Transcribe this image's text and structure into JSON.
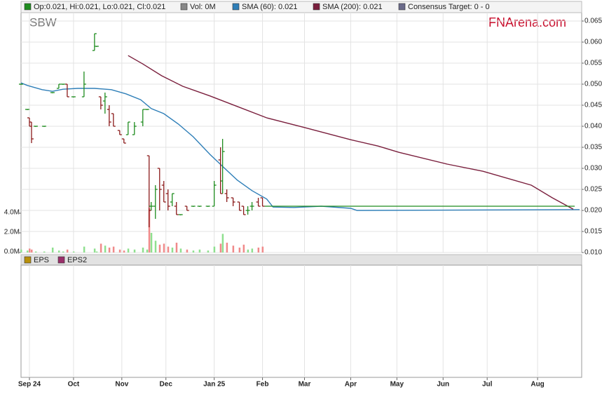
{
  "chart_data": [
    {
      "type": "ohlc",
      "ticker": "SBW",
      "brand": "FNArena.com",
      "legend": [
        {
          "label": "Op:0.021, Hi:0.021, Lo:0.021, Cl:0.021",
          "color": "#1e8c1e"
        },
        {
          "label": "Vol: 0M",
          "color": "#888888"
        },
        {
          "label": "SMA (60): 0.021",
          "color": "#2f7fb8"
        },
        {
          "label": "SMA (200): 0.021",
          "color": "#7a1f3d"
        },
        {
          "label": "Consensus Target: 0 - 0",
          "color": "#6a6a8a"
        }
      ],
      "up_color": "#1e8c1e",
      "down_color": "#8b1a1a",
      "volume_up_color": "#8fe08f",
      "volume_down_color": "#f08a8a",
      "x": [
        0,
        3,
        4,
        5,
        7,
        11,
        15,
        18,
        20,
        22,
        25,
        30,
        35,
        36,
        38,
        40,
        42,
        44,
        47,
        49,
        51,
        54,
        58,
        60,
        61,
        62,
        64,
        66,
        68,
        70,
        72,
        74,
        76,
        79,
        82,
        85,
        89,
        92,
        95,
        96,
        98,
        101,
        104,
        106,
        108,
        110,
        113,
        115
      ],
      "open": [
        0.05,
        0.044,
        0.042,
        0.041,
        0.04,
        0.04,
        0.048,
        0.049,
        0.05,
        0.05,
        0.047,
        0.047,
        0.058,
        0.059,
        0.047,
        0.046,
        0.044,
        0.043,
        0.039,
        0.037,
        0.038,
        0.038,
        0.041,
        0.044,
        0.033,
        0.021,
        0.021,
        0.03,
        0.026,
        0.024,
        0.022,
        0.021,
        0.019,
        0.021,
        0.021,
        0.021,
        0.021,
        0.021,
        0.032,
        0.027,
        0.024,
        0.023,
        0.022,
        0.021,
        0.02,
        0.021,
        0.022,
        0.023
      ],
      "high": [
        0.05,
        0.044,
        0.042,
        0.041,
        0.04,
        0.04,
        0.048,
        0.05,
        0.05,
        0.05,
        0.047,
        0.053,
        0.062,
        0.059,
        0.047,
        0.048,
        0.045,
        0.043,
        0.039,
        0.037,
        0.041,
        0.041,
        0.044,
        0.044,
        0.033,
        0.022,
        0.026,
        0.03,
        0.027,
        0.025,
        0.024,
        0.022,
        0.019,
        0.021,
        0.021,
        0.021,
        0.021,
        0.027,
        0.035,
        0.037,
        0.025,
        0.023,
        0.022,
        0.021,
        0.021,
        0.022,
        0.023,
        0.023
      ],
      "low": [
        0.05,
        0.044,
        0.04,
        0.036,
        0.04,
        0.04,
        0.048,
        0.049,
        0.05,
        0.047,
        0.047,
        0.047,
        0.058,
        0.059,
        0.044,
        0.043,
        0.04,
        0.04,
        0.038,
        0.036,
        0.038,
        0.038,
        0.04,
        0.044,
        0.016,
        0.02,
        0.018,
        0.02,
        0.022,
        0.02,
        0.021,
        0.019,
        0.019,
        0.02,
        0.021,
        0.021,
        0.021,
        0.021,
        0.024,
        0.024,
        0.022,
        0.021,
        0.02,
        0.019,
        0.019,
        0.02,
        0.021,
        0.021
      ],
      "close": [
        0.05,
        0.044,
        0.04,
        0.037,
        0.04,
        0.04,
        0.048,
        0.05,
        0.05,
        0.047,
        0.047,
        0.05,
        0.062,
        0.059,
        0.045,
        0.047,
        0.041,
        0.04,
        0.038,
        0.036,
        0.041,
        0.04,
        0.044,
        0.044,
        0.02,
        0.021,
        0.025,
        0.025,
        0.022,
        0.021,
        0.024,
        0.019,
        0.019,
        0.02,
        0.021,
        0.021,
        0.021,
        0.026,
        0.024,
        0.034,
        0.023,
        0.022,
        0.02,
        0.019,
        0.02,
        0.021,
        0.021,
        0.021
      ],
      "volume": [
        300000,
        200000,
        400000,
        300000,
        100000,
        100000,
        500000,
        200000,
        100000,
        300000,
        100000,
        600000,
        400000,
        100000,
        900000,
        700000,
        500000,
        600000,
        300000,
        200000,
        400000,
        300000,
        500000,
        300000,
        4500000,
        2000000,
        1200000,
        800000,
        900000,
        600000,
        500000,
        1000000,
        400000,
        300000,
        200000,
        300000,
        200000,
        600000,
        900000,
        1900000,
        1000000,
        700000,
        500000,
        800000,
        300000,
        400000,
        500000,
        600000
      ],
      "series": [
        {
          "color": "#2f7fb8",
          "x": [
            0,
            3,
            10,
            15,
            20,
            27,
            35,
            43,
            50,
            57,
            62,
            68,
            75,
            82,
            90,
            97,
            103,
            110,
            117,
            120,
            130,
            143,
            157,
            160,
            266
          ],
          "values": [
            0.0503,
            0.0497,
            0.0487,
            0.0483,
            0.0488,
            0.049,
            0.049,
            0.0487,
            0.0477,
            0.0463,
            0.0442,
            0.043,
            0.0405,
            0.0375,
            0.0333,
            0.03,
            0.0272,
            0.0247,
            0.0227,
            0.0208,
            0.0207,
            0.021,
            0.0205,
            0.02,
            0.0202
          ]
        },
        {
          "color": "#7a1f3d",
          "x": [
            51,
            58,
            67,
            77,
            90,
            103,
            117,
            135,
            157,
            170,
            180,
            203,
            220,
            243,
            253,
            263
          ],
          "values": [
            0.0568,
            0.0548,
            0.052,
            0.0495,
            0.0472,
            0.0447,
            0.042,
            0.0397,
            0.0368,
            0.0353,
            0.0338,
            0.031,
            0.0293,
            0.026,
            0.023,
            0.0203
          ]
        }
      ],
      "xlim": [
        0,
        267
      ],
      "xticks": [
        {
          "value": 4,
          "label": "Sep 24"
        },
        {
          "value": 25,
          "label": "Oct"
        },
        {
          "value": 48,
          "label": "Nov"
        },
        {
          "value": 69,
          "label": "Dec"
        },
        {
          "value": 92,
          "label": "Jan 25"
        },
        {
          "value": 115,
          "label": "Feb"
        },
        {
          "value": 135,
          "label": "Mar"
        },
        {
          "value": 157,
          "label": "Apr"
        },
        {
          "value": 179,
          "label": "May"
        },
        {
          "value": 201,
          "label": "Jun"
        },
        {
          "value": 222,
          "label": "Jul"
        },
        {
          "value": 246,
          "label": "Aug"
        }
      ],
      "ylim": [
        0.01,
        0.067
      ],
      "yticks": [
        {
          "value": 0.01,
          "label": "0.010"
        },
        0.015,
        {
          "value": 0.02,
          "label": "0.020"
        },
        0.025,
        {
          "value": 0.03,
          "label": "0.030"
        },
        0.035,
        {
          "value": 0.04,
          "label": "0.040"
        },
        0.045,
        {
          "value": 0.05,
          "label": "0.050"
        },
        0.055,
        {
          "value": 0.06,
          "label": "0.060"
        },
        0.065
      ],
      "y2lim": [
        0,
        24430000
      ],
      "y2ticks": [
        {
          "value": 0,
          "label": "0.0M"
        },
        {
          "value": 2000000,
          "label": "2.0M"
        },
        {
          "value": 4000000,
          "label": "4.0M"
        }
      ],
      "grid": true
    },
    {
      "type": "line",
      "legend": [
        {
          "label": "EPS",
          "color": "#b8900a"
        },
        {
          "label": "EPS2",
          "color": "#9a2f6a"
        }
      ],
      "series": [
        {
          "color": "#b8900a",
          "values": []
        },
        {
          "color": "#9a2f6a",
          "values": []
        }
      ]
    }
  ]
}
